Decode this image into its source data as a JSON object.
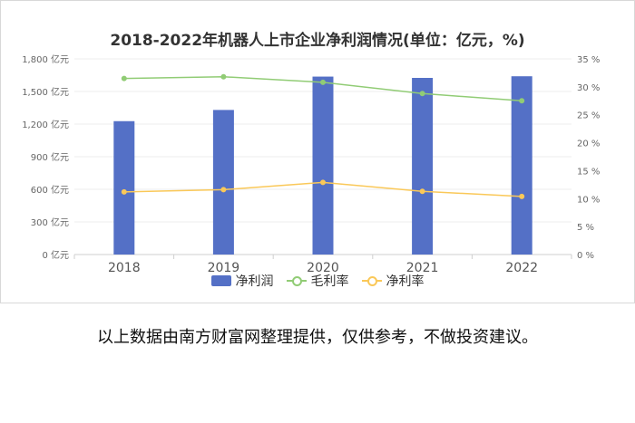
{
  "chart_data": {
    "type": "bar",
    "title": "2018-2022年机器人上市企业净利润情况(单位：亿元，%)",
    "categories": [
      "2018",
      "2019",
      "2020",
      "2021",
      "2022"
    ],
    "y_left": {
      "ticks": [
        "0 亿元",
        "300 亿元",
        "600 亿元",
        "900 亿元",
        "1,200 亿元",
        "1,500 亿元",
        "1,800 亿元"
      ],
      "ylim": [
        0,
        1800
      ]
    },
    "y_right": {
      "ticks": [
        "0 %",
        "5 %",
        "10 %",
        "15 %",
        "20 %",
        "25 %",
        "30 %",
        "35 %"
      ],
      "ylim": [
        0,
        35
      ]
    },
    "series": [
      {
        "name": "净利润",
        "type": "bar",
        "axis": "left",
        "color": "#5470c6",
        "values": [
          1227,
          1330,
          1637,
          1625,
          1640
        ]
      },
      {
        "name": "毛利率",
        "type": "line",
        "axis": "right",
        "color": "#91cc75",
        "values": [
          31.5,
          31.8,
          30.8,
          28.8,
          27.5
        ]
      },
      {
        "name": "净利率",
        "type": "line",
        "axis": "right",
        "color": "#fac858",
        "values": [
          11.2,
          11.6,
          12.9,
          11.3,
          10.4
        ]
      }
    ],
    "grid": true,
    "legend_position": "bottom"
  },
  "footnote": "以上数据由南方财富网整理提供，仅供参考，不做投资建议。"
}
